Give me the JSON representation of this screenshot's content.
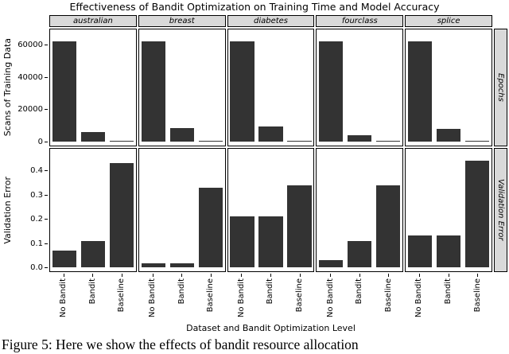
{
  "figure": {
    "title": "Effectiveness of Bandit Optimization on Training Time and Model Accuracy",
    "caption": "Figure 5:  Here we show the effects of bandit resource allocation"
  },
  "chart_data": {
    "type": "bar",
    "facet_columns": [
      "australian",
      "breast",
      "diabetes",
      "fourclass",
      "splice"
    ],
    "categories": [
      "No Bandit",
      "Bandit",
      "Baseline"
    ],
    "xlabel": "Dataset and Bandit Optimization Level",
    "bar_color": "#333333",
    "strip_bg": "#d9d9d9",
    "grid": false,
    "rows": [
      {
        "strip_label": "Epochs",
        "ylabel": "Scans of Training Data",
        "ylim": [
          0,
          65000
        ],
        "yticks": [
          0,
          20000,
          40000,
          60000
        ],
        "ytick_labels": [
          "0",
          "20000",
          "40000",
          "60000"
        ],
        "values": [
          [
            62000,
            6000,
            250
          ],
          [
            62000,
            8500,
            250
          ],
          [
            62000,
            9500,
            500
          ],
          [
            62000,
            3800,
            250
          ],
          [
            62000,
            8000,
            500
          ]
        ]
      },
      {
        "strip_label": "Validation Error",
        "ylabel": "Validation Error",
        "ylim": [
          0,
          0.46
        ],
        "yticks": [
          0.0,
          0.1,
          0.2,
          0.3,
          0.4
        ],
        "ytick_labels": [
          "0.0",
          "0.1",
          "0.2",
          "0.3",
          "0.4"
        ],
        "values": [
          [
            0.07,
            0.11,
            0.43
          ],
          [
            0.015,
            0.015,
            0.33
          ],
          [
            0.21,
            0.21,
            0.34
          ],
          [
            0.03,
            0.11,
            0.34
          ],
          [
            0.13,
            0.13,
            0.44
          ]
        ]
      }
    ]
  }
}
